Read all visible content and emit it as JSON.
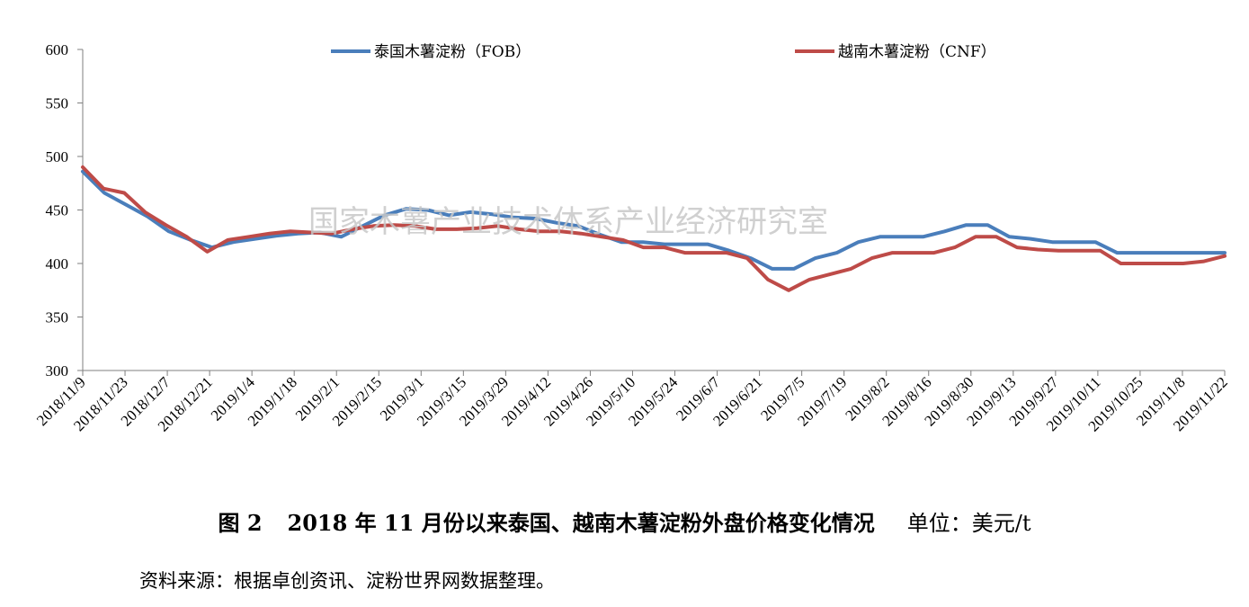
{
  "chart_data": {
    "type": "line",
    "title": "",
    "xlabel": "",
    "ylabel": "",
    "ylim": [
      300,
      600
    ],
    "yticks": [
      300,
      350,
      400,
      450,
      500,
      550,
      600
    ],
    "grid": false,
    "legend_position": "top",
    "x_tick_labels": [
      "2018/11/9",
      "2018/11/23",
      "2018/12/7",
      "2018/12/21",
      "2019/1/4",
      "2019/1/18",
      "2019/2/1",
      "2019/2/15",
      "2019/3/1",
      "2019/3/15",
      "2019/3/29",
      "2019/4/12",
      "2019/4/26",
      "2019/5/10",
      "2019/5/24",
      "2019/6/7",
      "2019/6/21",
      "2019/7/5",
      "2019/7/19",
      "2019/8/2",
      "2019/8/16",
      "2019/8/30",
      "2019/9/13",
      "2019/9/27",
      "2019/10/11",
      "2019/10/25",
      "2019/11/8",
      "2019/11/22"
    ],
    "series": [
      {
        "name": "泰国木薯淀粉（FOB）",
        "color": "#4a7ebb",
        "values": [
          486,
          466,
          455,
          444,
          430,
          422,
          415,
          420,
          423,
          426,
          428,
          429,
          425,
          435,
          445,
          451,
          450,
          445,
          448,
          446,
          443,
          442,
          438,
          435,
          427,
          420,
          420,
          418,
          418,
          418,
          412,
          405,
          395,
          395,
          405,
          410,
          420,
          425,
          425,
          425,
          430,
          436,
          436,
          425,
          423,
          420,
          420,
          420,
          410,
          410,
          410,
          410,
          410,
          410
        ]
      },
      {
        "name": "越南木薯淀粉（CNF）",
        "color": "#be4b48",
        "values": [
          490,
          470,
          466,
          448,
          436,
          425,
          411,
          422,
          425,
          428,
          430,
          429,
          428,
          432,
          435,
          436,
          435,
          432,
          432,
          433,
          435,
          432,
          430,
          430,
          428,
          425,
          422,
          415,
          415,
          410,
          410,
          410,
          405,
          385,
          375,
          385,
          390,
          395,
          405,
          410,
          410,
          410,
          415,
          425,
          425,
          415,
          413,
          412,
          412,
          412,
          400,
          400,
          400,
          400,
          402,
          407
        ]
      }
    ]
  },
  "watermark": "国家木薯产业技术体系产业经济研究室",
  "caption": {
    "figure_no": "图 2",
    "title": "2018 年 11 月份以来泰国、越南木薯淀粉外盘价格变化情况",
    "unit": "单位：美元/t"
  },
  "source": "资料来源：根据卓创资讯、淀粉世界网数据整理。"
}
